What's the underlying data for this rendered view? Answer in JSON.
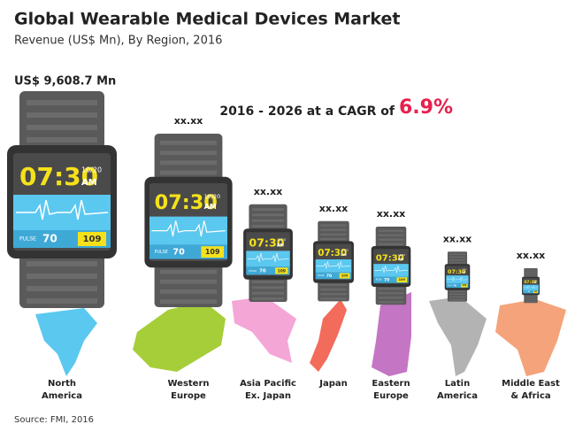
{
  "header": {
    "title": "Global Wearable Medical Devices Market",
    "subtitle": "Revenue (US$ Mn), By Region, 2016"
  },
  "cagr": {
    "text": "2016 - 2026 at a CAGR of",
    "value": "6.9%"
  },
  "watch_face": {
    "time": "07:30",
    "date": "10/20",
    "ampm": "AM",
    "pulse_label": "PULSE",
    "pulse": "70",
    "reading": "109"
  },
  "regions": [
    {
      "name": [
        "North",
        "America"
      ],
      "label": "US$ 9,608.7 Mn",
      "color": "#5bc8f0"
    },
    {
      "name": [
        "Western",
        "Europe"
      ],
      "label": "xx.xx",
      "color": "#a6ce39"
    },
    {
      "name": [
        "Asia Pacific",
        "Ex. Japan"
      ],
      "label": "xx.xx",
      "color": "#f4a6d7"
    },
    {
      "name": [
        "Japan"
      ],
      "label": "xx.xx",
      "color": "#f26b5b"
    },
    {
      "name": [
        "Eastern",
        "Europe"
      ],
      "label": "xx.xx",
      "color": "#c476c4"
    },
    {
      "name": [
        "Latin",
        "America"
      ],
      "label": "xx.xx",
      "color": "#b3b3b3"
    },
    {
      "name": [
        "Middle East",
        "& Africa"
      ],
      "label": "xx.xx",
      "color": "#f5a37a"
    }
  ],
  "source": "Source: FMI, 2016"
}
